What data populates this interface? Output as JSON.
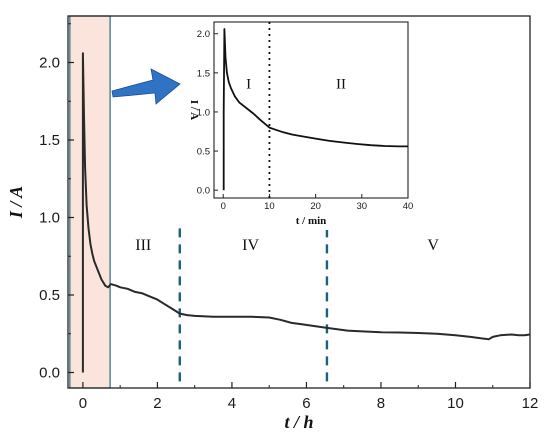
{
  "chart_data": [
    {
      "id": "main",
      "type": "line",
      "xlabel": "t / h",
      "ylabel": "I / A",
      "xlim": [
        -0.4,
        12
      ],
      "ylim": [
        -0.1,
        2.3
      ],
      "xticks": [
        "0",
        "2",
        "4",
        "6",
        "8",
        "10",
        "12"
      ],
      "yticks": [
        "0.0",
        "0.5",
        "1.0",
        "1.5",
        "2.0"
      ],
      "series": [
        {
          "color": "#2a2a2a",
          "points": [
            [
              0.0,
              0.0
            ],
            [
              0.0,
              2.06
            ],
            [
              0.03,
              1.65
            ],
            [
              0.06,
              1.32
            ],
            [
              0.1,
              1.08
            ],
            [
              0.15,
              0.93
            ],
            [
              0.2,
              0.83
            ],
            [
              0.25,
              0.77
            ],
            [
              0.3,
              0.72
            ],
            [
              0.4,
              0.66
            ],
            [
              0.5,
              0.6
            ],
            [
              0.6,
              0.56
            ],
            [
              0.68,
              0.55
            ],
            [
              0.75,
              0.57
            ],
            [
              0.9,
              0.56
            ],
            [
              1.0,
              0.55
            ],
            [
              1.2,
              0.54
            ],
            [
              1.4,
              0.52
            ],
            [
              1.6,
              0.51
            ],
            [
              1.8,
              0.49
            ],
            [
              2.0,
              0.47
            ],
            [
              2.2,
              0.44
            ],
            [
              2.4,
              0.41
            ],
            [
              2.6,
              0.38
            ],
            [
              2.8,
              0.37
            ],
            [
              3.0,
              0.365
            ],
            [
              3.5,
              0.36
            ],
            [
              4.0,
              0.36
            ],
            [
              4.5,
              0.36
            ],
            [
              5.0,
              0.355
            ],
            [
              5.3,
              0.34
            ],
            [
              5.6,
              0.32
            ],
            [
              5.9,
              0.31
            ],
            [
              6.2,
              0.3
            ],
            [
              6.5,
              0.29
            ],
            [
              6.8,
              0.28
            ],
            [
              7.1,
              0.27
            ],
            [
              7.5,
              0.265
            ],
            [
              8.0,
              0.26
            ],
            [
              8.5,
              0.258
            ],
            [
              9.0,
              0.255
            ],
            [
              9.5,
              0.25
            ],
            [
              10.0,
              0.24
            ],
            [
              10.4,
              0.23
            ],
            [
              10.7,
              0.22
            ],
            [
              10.9,
              0.215
            ],
            [
              11.0,
              0.23
            ],
            [
              11.2,
              0.24
            ],
            [
              11.5,
              0.245
            ],
            [
              11.7,
              0.24
            ],
            [
              11.85,
              0.24
            ],
            [
              12.0,
              0.245
            ]
          ]
        }
      ],
      "dividers": [
        2.6,
        6.55
      ],
      "phases": [
        {
          "label": "III",
          "x": 1.62,
          "y": 0.79
        },
        {
          "label": "IV",
          "x": 4.5,
          "y": 0.79
        },
        {
          "label": "V",
          "x": 9.4,
          "y": 0.79
        }
      ],
      "highlight": {
        "x_from": -0.35,
        "x_to": 0.73,
        "fill": "#fbe4dc",
        "stroke": "#2b6a80"
      }
    },
    {
      "id": "inset",
      "type": "line",
      "xlabel": "t / min",
      "ylabel": "I / A",
      "xlim": [
        -2,
        40
      ],
      "ylim": [
        -0.1,
        2.15
      ],
      "xticks": [
        "0",
        "10",
        "20",
        "30",
        "40"
      ],
      "yticks": [
        "0.0",
        "0.5",
        "1.0",
        "1.5",
        "2.0"
      ],
      "series": [
        {
          "color": "#111111",
          "points": [
            [
              0.1,
              0.0
            ],
            [
              0.1,
              1.0
            ],
            [
              0.25,
              2.06
            ],
            [
              0.5,
              1.7
            ],
            [
              0.8,
              1.5
            ],
            [
              1.2,
              1.38
            ],
            [
              1.7,
              1.3
            ],
            [
              2.5,
              1.2
            ],
            [
              3.5,
              1.12
            ],
            [
              5.0,
              1.05
            ],
            [
              6.5,
              0.98
            ],
            [
              8.0,
              0.9
            ],
            [
              9.0,
              0.85
            ],
            [
              10.0,
              0.8
            ],
            [
              11.0,
              0.78
            ],
            [
              13.0,
              0.74
            ],
            [
              15.0,
              0.71
            ],
            [
              17.0,
              0.69
            ],
            [
              20.0,
              0.66
            ],
            [
              23.0,
              0.63
            ],
            [
              26.0,
              0.61
            ],
            [
              29.0,
              0.59
            ],
            [
              32.0,
              0.575
            ],
            [
              35.0,
              0.565
            ],
            [
              38.0,
              0.56
            ],
            [
              40.0,
              0.56
            ]
          ]
        }
      ],
      "dividers": [
        10
      ],
      "phases": [
        {
          "label": "I",
          "x": 5.5,
          "y": 1.3
        },
        {
          "label": "II",
          "x": 25.5,
          "y": 1.3
        }
      ]
    }
  ],
  "colors": {
    "divider": "#1f5f78",
    "arrow": "#2f73c4"
  }
}
